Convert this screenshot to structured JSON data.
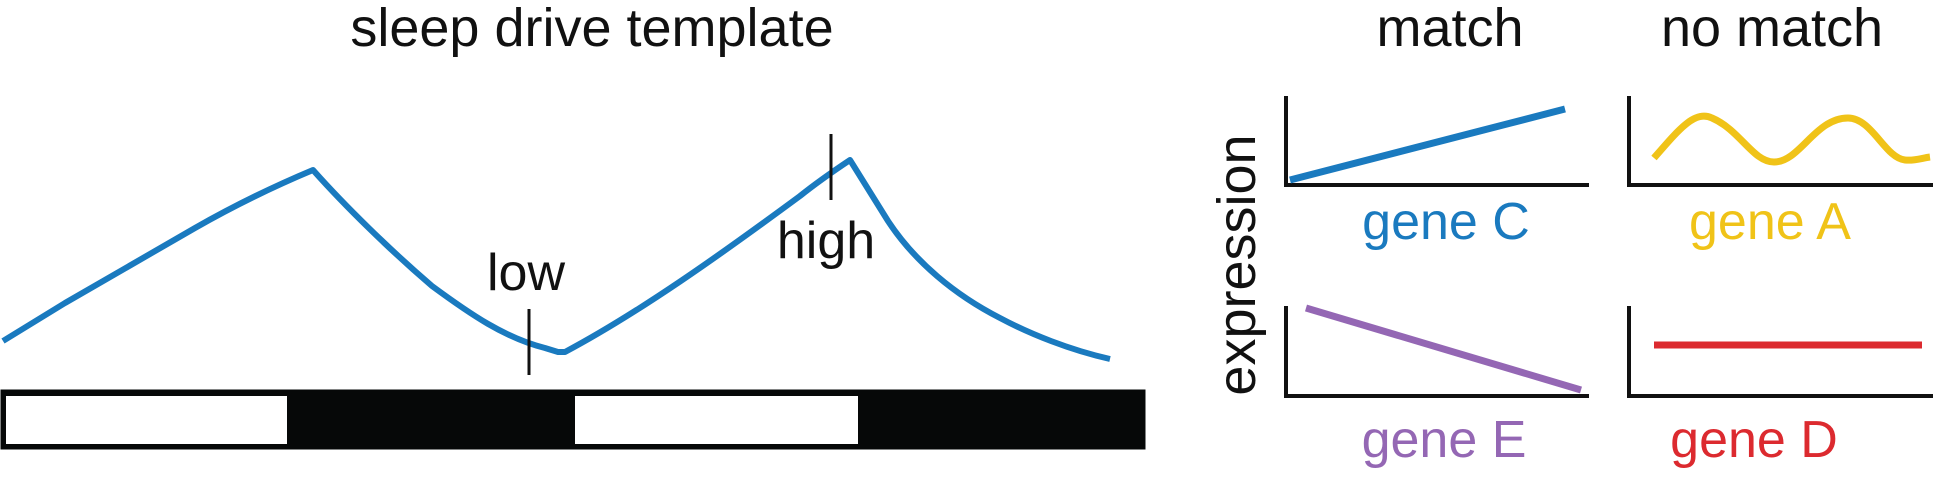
{
  "left_panel": {
    "title": "sleep drive template",
    "low_label": "low",
    "high_label": "high",
    "curve_color": "#1a7abf",
    "light_dark_bar": [
      "light",
      "dark",
      "light",
      "dark"
    ],
    "bar_colors": {
      "light": "#ffffff",
      "dark": "#060808"
    }
  },
  "right_panel": {
    "column_headers": {
      "match": "match",
      "no_match": "no match"
    },
    "y_axis_label": "expression",
    "plots": [
      {
        "gene": "gene C",
        "column": "match",
        "row": "top",
        "pattern": "rising",
        "color": "#1a7abf"
      },
      {
        "gene": "gene A",
        "column": "no match",
        "row": "top",
        "pattern": "oscillating",
        "color": "#f0c318"
      },
      {
        "gene": "gene E",
        "column": "match",
        "row": "bottom",
        "pattern": "falling",
        "color": "#9467b4"
      },
      {
        "gene": "gene D",
        "column": "no match",
        "row": "bottom",
        "pattern": "flat",
        "color": "#dc2a2f"
      }
    ]
  }
}
